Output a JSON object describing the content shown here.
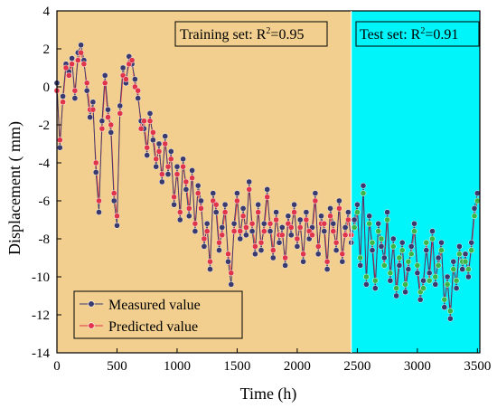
{
  "chart_data": {
    "type": "line",
    "xlabel": "Time (h)",
    "ylabel": "Displacement ( mm)",
    "xlim": [
      0,
      3520
    ],
    "ylim": [
      -14,
      4
    ],
    "xticks": [
      0,
      500,
      1000,
      1500,
      2000,
      2500,
      3000,
      3500
    ],
    "yticks": [
      -14,
      -12,
      -10,
      -8,
      -6,
      -4,
      -2,
      0,
      2,
      4
    ],
    "grid": false,
    "legend_position": "bottom-left",
    "colors": {
      "training_bg": "#f2cf8e",
      "test_bg": "#00f5fa",
      "measured": "#3a3a6e",
      "predicted": "#e0344a",
      "test_predicted_marker": "#3ab54a"
    },
    "regions": [
      {
        "name": "training",
        "x_range": [
          0,
          2450
        ],
        "annotation": {
          "text": "Training set:  R",
          "sup": "2",
          "value": "=0.95"
        }
      },
      {
        "name": "test",
        "x_range": [
          2450,
          3520
        ],
        "annotation": {
          "text": "Test set:  R",
          "sup": "2",
          "value": "=0.91"
        }
      }
    ],
    "split_x": 2450,
    "series": [
      {
        "name": "Measured value",
        "x": [
          0,
          25,
          50,
          75,
          100,
          125,
          150,
          175,
          200,
          225,
          250,
          275,
          300,
          325,
          350,
          375,
          400,
          425,
          450,
          475,
          500,
          525,
          550,
          575,
          600,
          625,
          650,
          675,
          700,
          725,
          750,
          775,
          800,
          825,
          850,
          875,
          900,
          925,
          950,
          975,
          1000,
          1025,
          1050,
          1075,
          1100,
          1125,
          1150,
          1175,
          1200,
          1225,
          1250,
          1275,
          1300,
          1325,
          1350,
          1375,
          1400,
          1425,
          1450,
          1475,
          1500,
          1525,
          1550,
          1575,
          1600,
          1625,
          1650,
          1675,
          1700,
          1725,
          1750,
          1775,
          1800,
          1825,
          1850,
          1875,
          1900,
          1925,
          1950,
          1975,
          2000,
          2025,
          2050,
          2075,
          2100,
          2125,
          2150,
          2175,
          2200,
          2225,
          2250,
          2275,
          2300,
          2325,
          2350,
          2375,
          2400,
          2425,
          2450,
          2475,
          2500,
          2525,
          2550,
          2575,
          2600,
          2625,
          2650,
          2675,
          2700,
          2725,
          2750,
          2775,
          2800,
          2825,
          2850,
          2875,
          2900,
          2925,
          2950,
          2975,
          3000,
          3025,
          3050,
          3075,
          3100,
          3125,
          3150,
          3175,
          3200,
          3225,
          3250,
          3275,
          3300,
          3325,
          3350,
          3375,
          3400,
          3425,
          3450,
          3475,
          3500
        ],
        "y": [
          0.2,
          -3.2,
          -0.5,
          1.2,
          0.8,
          1.5,
          -0.6,
          1.8,
          2.2,
          1.4,
          -0.2,
          -1.6,
          -0.8,
          -4.5,
          -6.6,
          -1.8,
          0.6,
          -1.2,
          -2.4,
          -6.0,
          -7.3,
          -1.0,
          1.0,
          0.2,
          1.6,
          1.2,
          0.4,
          -0.6,
          -1.8,
          -2.2,
          -3.6,
          -1.4,
          -2.8,
          -4.2,
          -3.0,
          -5.0,
          -2.6,
          -4.6,
          -3.4,
          -6.2,
          -4.2,
          -7.0,
          -3.8,
          -5.4,
          -6.8,
          -4.4,
          -7.6,
          -5.2,
          -6.0,
          -8.4,
          -7.2,
          -9.6,
          -5.6,
          -6.6,
          -8.6,
          -7.4,
          -6.2,
          -9.2,
          -10.4,
          -7.2,
          -5.6,
          -8.0,
          -6.4,
          -7.8,
          -5.0,
          -7.6,
          -8.8,
          -6.2,
          -8.6,
          -7.2,
          -5.4,
          -7.6,
          -9.0,
          -6.6,
          -8.2,
          -7.4,
          -9.4,
          -6.8,
          -7.8,
          -6.2,
          -8.4,
          -7.0,
          -9.2,
          -6.6,
          -8.0,
          -7.4,
          -5.6,
          -8.8,
          -6.8,
          -7.6,
          -9.6,
          -6.4,
          -7.2,
          -8.6,
          -6.0,
          -9.2,
          -7.4,
          -6.6,
          -8.2,
          -7.0,
          -6.2,
          -9.4,
          -5.2,
          -10.4,
          -6.8,
          -8.6,
          -10.6,
          -7.2,
          -8.4,
          -9.0,
          -6.6,
          -10.2,
          -8.0,
          -11.0,
          -9.4,
          -8.2,
          -10.8,
          -9.6,
          -8.4,
          -7.2,
          -9.8,
          -11.2,
          -10.2,
          -8.6,
          -9.8,
          -7.6,
          -10.4,
          -9.0,
          -8.2,
          -11.6,
          -10.0,
          -12.2,
          -9.2,
          -10.6,
          -8.4,
          -9.6,
          -8.8,
          -10.0,
          -8.2,
          -6.4,
          -5.6
        ]
      },
      {
        "name": "Predicted value",
        "x": [
          0,
          25,
          50,
          75,
          100,
          125,
          150,
          175,
          200,
          225,
          250,
          275,
          300,
          325,
          350,
          375,
          400,
          425,
          450,
          475,
          500,
          525,
          550,
          575,
          600,
          625,
          650,
          675,
          700,
          725,
          750,
          775,
          800,
          825,
          850,
          875,
          900,
          925,
          950,
          975,
          1000,
          1025,
          1050,
          1075,
          1100,
          1125,
          1150,
          1175,
          1200,
          1225,
          1250,
          1275,
          1300,
          1325,
          1350,
          1375,
          1400,
          1425,
          1450,
          1475,
          1500,
          1525,
          1550,
          1575,
          1600,
          1625,
          1650,
          1675,
          1700,
          1725,
          1750,
          1775,
          1800,
          1825,
          1850,
          1875,
          1900,
          1925,
          1950,
          1975,
          2000,
          2025,
          2050,
          2075,
          2100,
          2125,
          2150,
          2175,
          2200,
          2225,
          2250,
          2275,
          2300,
          2325,
          2350,
          2375,
          2400,
          2425,
          2450,
          2475,
          2500,
          2525,
          2550,
          2575,
          2600,
          2625,
          2650,
          2675,
          2700,
          2725,
          2750,
          2775,
          2800,
          2825,
          2850,
          2875,
          2900,
          2925,
          2950,
          2975,
          3000,
          3025,
          3050,
          3075,
          3100,
          3125,
          3150,
          3175,
          3200,
          3225,
          3250,
          3275,
          3300,
          3325,
          3350,
          3375,
          3400,
          3425,
          3450,
          3475,
          3500
        ],
        "y": [
          -0.2,
          -2.8,
          -0.8,
          1.0,
          0.6,
          1.2,
          -0.2,
          1.4,
          1.8,
          1.2,
          0.2,
          -1.2,
          -1.2,
          -4.0,
          -6.0,
          -2.2,
          0.2,
          -1.6,
          -2.0,
          -5.6,
          -6.8,
          -1.4,
          0.6,
          0.4,
          1.2,
          1.4,
          0.0,
          -0.2,
          -2.2,
          -1.8,
          -3.2,
          -1.8,
          -2.4,
          -3.8,
          -3.4,
          -4.6,
          -3.0,
          -4.2,
          -3.8,
          -5.8,
          -4.6,
          -6.6,
          -4.2,
          -5.0,
          -6.4,
          -4.8,
          -7.2,
          -5.6,
          -6.4,
          -8.0,
          -7.6,
          -9.2,
          -6.0,
          -6.2,
          -8.2,
          -7.8,
          -6.6,
          -8.8,
          -9.8,
          -7.6,
          -6.0,
          -7.6,
          -6.8,
          -7.4,
          -5.4,
          -7.2,
          -8.4,
          -6.6,
          -8.2,
          -7.6,
          -5.8,
          -7.2,
          -8.6,
          -7.0,
          -7.8,
          -7.8,
          -9.0,
          -7.2,
          -7.4,
          -6.6,
          -8.0,
          -7.4,
          -8.8,
          -7.0,
          -7.6,
          -7.8,
          -6.0,
          -8.4,
          -7.2,
          -7.2,
          -9.2,
          -6.8,
          -7.6,
          -8.2,
          -6.4,
          -8.8,
          -7.8,
          -7.0,
          -7.8,
          -7.4,
          -6.6,
          -9.0,
          -5.6,
          -10.0,
          -7.2,
          -8.2,
          -10.2,
          -7.6,
          -8.0,
          -9.4,
          -7.0,
          -9.8,
          -8.4,
          -10.6,
          -9.0,
          -8.6,
          -10.4,
          -9.2,
          -8.8,
          -7.6,
          -9.4,
          -10.8,
          -10.6,
          -8.2,
          -10.2,
          -8.0,
          -10.0,
          -9.4,
          -8.6,
          -11.2,
          -10.4,
          -11.8,
          -9.6,
          -10.2,
          -8.8,
          -9.2,
          -9.2,
          -9.6,
          -8.6,
          -6.8,
          -6.0
        ]
      }
    ],
    "legend": [
      "Measured value",
      "Predicted value"
    ]
  }
}
